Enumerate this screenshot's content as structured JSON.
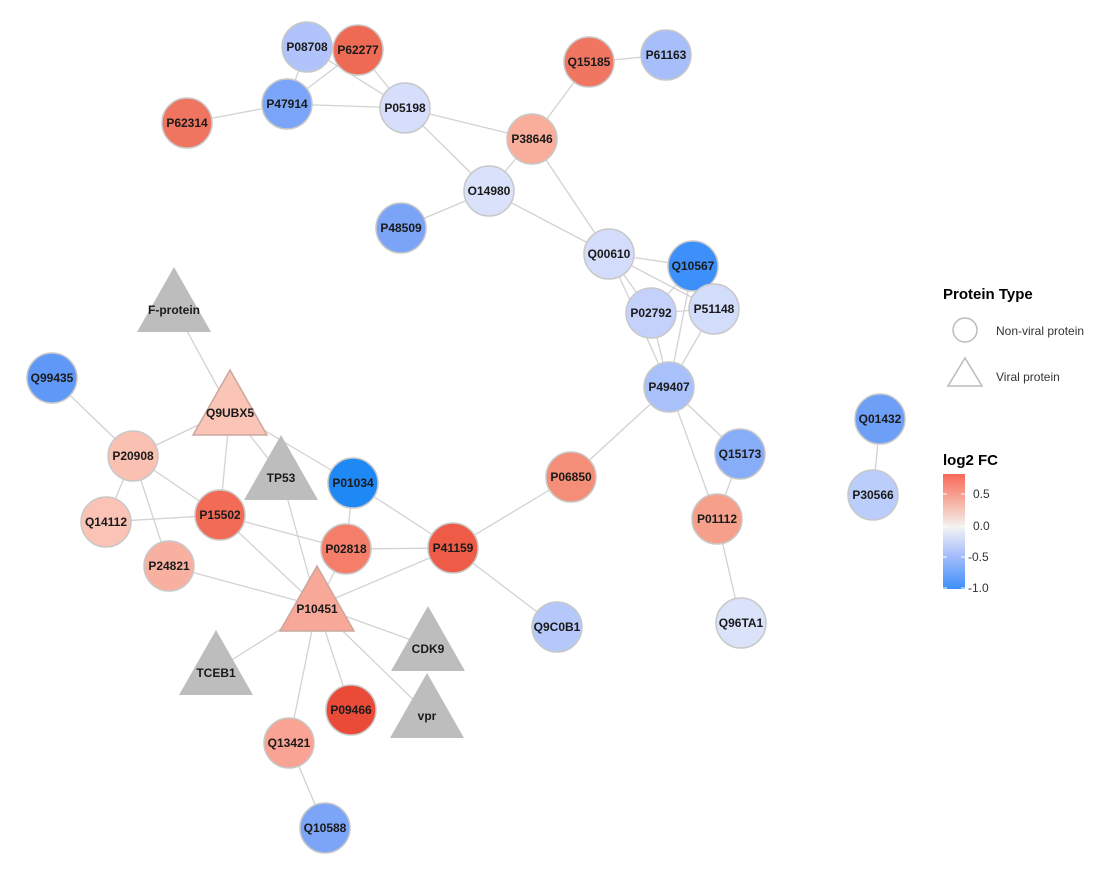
{
  "network": {
    "nodes": [
      {
        "id": "P08708",
        "type": "circle",
        "color": "#b0c4fb"
      },
      {
        "id": "P62277",
        "type": "circle",
        "color": "#ef6a55"
      },
      {
        "id": "P47914",
        "type": "circle",
        "color": "#7ba5f8"
      },
      {
        "id": "P62314",
        "type": "circle",
        "color": "#ef7560"
      },
      {
        "id": "P05198",
        "type": "circle",
        "color": "#d6defb"
      },
      {
        "id": "Q15185",
        "type": "circle",
        "color": "#f07662"
      },
      {
        "id": "P61163",
        "type": "circle",
        "color": "#a6bffa"
      },
      {
        "id": "P38646",
        "type": "circle",
        "color": "#f9ad9b"
      },
      {
        "id": "O14980",
        "type": "circle",
        "color": "#d9e1fb"
      },
      {
        "id": "P48509",
        "type": "circle",
        "color": "#7ba4f7"
      },
      {
        "id": "Q00610",
        "type": "circle",
        "color": "#d4dcfb"
      },
      {
        "id": "Q10567",
        "type": "circle",
        "color": "#3d8ff9"
      },
      {
        "id": "P02792",
        "type": "circle",
        "color": "#c4d2fb"
      },
      {
        "id": "P51148",
        "type": "circle",
        "color": "#d2dcfb"
      },
      {
        "id": "P49407",
        "type": "circle",
        "color": "#a8c1fa"
      },
      {
        "id": "F-protein",
        "type": "triangle",
        "color": "#bdbdbd"
      },
      {
        "id": "Q99435",
        "type": "circle",
        "color": "#5f98f6"
      },
      {
        "id": "Q9UBX5",
        "type": "triangle",
        "color": "#fac4b6"
      },
      {
        "id": "P20908",
        "type": "circle",
        "color": "#fac0b1"
      },
      {
        "id": "TP53",
        "type": "triangle",
        "color": "#bdbdbd"
      },
      {
        "id": "P01034",
        "type": "circle",
        "color": "#1e88f5"
      },
      {
        "id": "P06850",
        "type": "circle",
        "color": "#f58e78"
      },
      {
        "id": "Q15173",
        "type": "circle",
        "color": "#88adf8"
      },
      {
        "id": "Q01432",
        "type": "circle",
        "color": "#6e9ff7"
      },
      {
        "id": "P30566",
        "type": "circle",
        "color": "#bbcdfb"
      },
      {
        "id": "P01112",
        "type": "circle",
        "color": "#f6a08c"
      },
      {
        "id": "Q14112",
        "type": "circle",
        "color": "#fbc3b5"
      },
      {
        "id": "P15502",
        "type": "circle",
        "color": "#f16b57"
      },
      {
        "id": "P02818",
        "type": "circle",
        "color": "#f47e69"
      },
      {
        "id": "P41159",
        "type": "circle",
        "color": "#ee5c48"
      },
      {
        "id": "P24821",
        "type": "circle",
        "color": "#f8b1a1"
      },
      {
        "id": "P10451",
        "type": "triangle",
        "color": "#f8a898"
      },
      {
        "id": "Q9C0B1",
        "type": "circle",
        "color": "#b5c8fa"
      },
      {
        "id": "Q96TA1",
        "type": "circle",
        "color": "#dbe3fb"
      },
      {
        "id": "CDK9",
        "type": "triangle",
        "color": "#bdbdbd"
      },
      {
        "id": "TCEB1",
        "type": "triangle",
        "color": "#bdbdbd"
      },
      {
        "id": "P09466",
        "type": "circle",
        "color": "#ea4a38"
      },
      {
        "id": "vpr",
        "type": "triangle",
        "color": "#bdbdbd"
      },
      {
        "id": "Q13421",
        "type": "circle",
        "color": "#f8a393"
      },
      {
        "id": "Q10588",
        "type": "circle",
        "color": "#7ca5f7"
      }
    ],
    "edges": [
      [
        "P08708",
        "P62277"
      ],
      [
        "P08708",
        "P47914"
      ],
      [
        "P08708",
        "P05198"
      ],
      [
        "P62277",
        "P47914"
      ],
      [
        "P62277",
        "P05198"
      ],
      [
        "P47914",
        "P62314"
      ],
      [
        "P47914",
        "P05198"
      ],
      [
        "P05198",
        "P38646"
      ],
      [
        "P05198",
        "O14980"
      ],
      [
        "Q15185",
        "P61163"
      ],
      [
        "Q15185",
        "P38646"
      ],
      [
        "P38646",
        "O14980"
      ],
      [
        "P38646",
        "Q00610"
      ],
      [
        "O14980",
        "P48509"
      ],
      [
        "O14980",
        "Q00610"
      ],
      [
        "Q00610",
        "Q10567"
      ],
      [
        "Q00610",
        "P02792"
      ],
      [
        "Q00610",
        "P51148"
      ],
      [
        "Q00610",
        "P49407"
      ],
      [
        "Q10567",
        "P02792"
      ],
      [
        "Q10567",
        "P51148"
      ],
      [
        "Q10567",
        "P49407"
      ],
      [
        "P02792",
        "P51148"
      ],
      [
        "P02792",
        "P49407"
      ],
      [
        "P51148",
        "P49407"
      ],
      [
        "P49407",
        "Q15173"
      ],
      [
        "P49407",
        "P01112"
      ],
      [
        "P49407",
        "P06850"
      ],
      [
        "Q15173",
        "P01112"
      ],
      [
        "P01112",
        "Q96TA1"
      ],
      [
        "Q01432",
        "P30566"
      ],
      [
        "P06850",
        "P41159"
      ],
      [
        "F-protein",
        "Q9UBX5"
      ],
      [
        "Q99435",
        "P20908"
      ],
      [
        "Q9UBX5",
        "P20908"
      ],
      [
        "Q9UBX5",
        "P15502"
      ],
      [
        "Q9UBX5",
        "TP53"
      ],
      [
        "Q9UBX5",
        "P01034"
      ],
      [
        "P20908",
        "P15502"
      ],
      [
        "P20908",
        "Q14112"
      ],
      [
        "P20908",
        "P24821"
      ],
      [
        "Q14112",
        "P15502"
      ],
      [
        "P15502",
        "P02818"
      ],
      [
        "P15502",
        "P10451"
      ],
      [
        "TP53",
        "P10451"
      ],
      [
        "P01034",
        "P41159"
      ],
      [
        "P01034",
        "P02818"
      ],
      [
        "P02818",
        "P41159"
      ],
      [
        "P02818",
        "P10451"
      ],
      [
        "P41159",
        "P10451"
      ],
      [
        "P41159",
        "Q9C0B1"
      ],
      [
        "P24821",
        "P10451"
      ],
      [
        "P10451",
        "CDK9"
      ],
      [
        "P10451",
        "TCEB1"
      ],
      [
        "P10451",
        "P09466"
      ],
      [
        "P10451",
        "vpr"
      ],
      [
        "P10451",
        "Q13421"
      ],
      [
        "Q13421",
        "Q10588"
      ]
    ]
  },
  "legend": {
    "type_title": "Protein Type",
    "type_items": [
      {
        "shape": "circle",
        "label": "Non-viral protein"
      },
      {
        "shape": "triangle",
        "label": "Viral protein"
      }
    ],
    "color_title": "log2 FC",
    "color_ticks": [
      "0.5",
      "0.0",
      "-0.5",
      "-1.0"
    ],
    "color_stops": [
      "#f8695a",
      "#f6b9ab",
      "#f3f3f3",
      "#a9bffb",
      "#3d8ff9"
    ]
  }
}
